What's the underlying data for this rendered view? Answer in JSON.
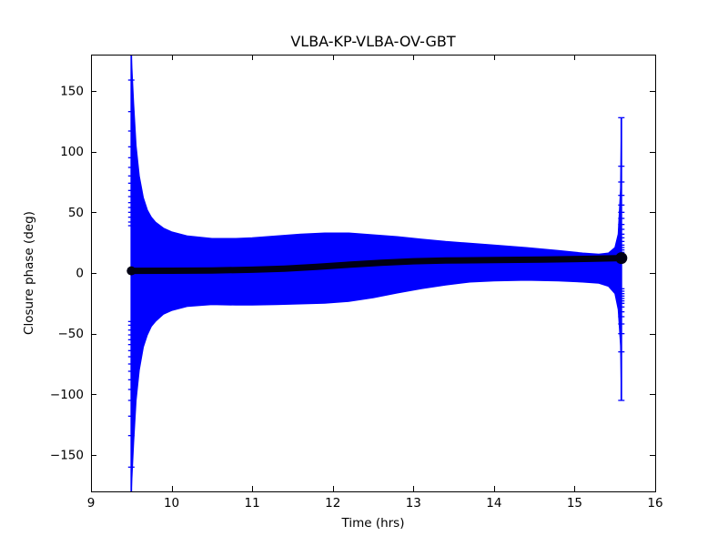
{
  "chart_data": {
    "type": "line",
    "subtype": "errorbar-closure-phase",
    "title": "VLBA-KP-VLBA-OV-GBT",
    "xlabel": "Time (hrs)",
    "ylabel": "Closure phase (deg)",
    "xlim": [
      9,
      16
    ],
    "ylim": [
      -180,
      180
    ],
    "xticks": [
      9,
      10,
      11,
      12,
      13,
      14,
      15,
      16
    ],
    "xtick_labels": [
      "9",
      "10",
      "11",
      "12",
      "13",
      "14",
      "15",
      "16"
    ],
    "yticks": [
      150,
      100,
      50,
      0,
      -50,
      -100,
      -150
    ],
    "ytick_labels": [
      "150",
      "100",
      "50",
      "0",
      "−50",
      "−100",
      "−150"
    ],
    "grid": false,
    "legend": null,
    "colors": {
      "errorbar": "#0000ff",
      "mean_line": "#000014",
      "frame": "#000000",
      "background": "#ffffff"
    },
    "envelope": [
      [
        9.5,
        180,
        -180
      ],
      [
        9.53,
        140,
        -140
      ],
      [
        9.56,
        105,
        -105
      ],
      [
        9.6,
        80,
        -80
      ],
      [
        9.65,
        62,
        -61
      ],
      [
        9.7,
        52,
        -51
      ],
      [
        9.75,
        46,
        -44
      ],
      [
        9.8,
        42,
        -40
      ],
      [
        9.9,
        37,
        -34
      ],
      [
        10.0,
        34,
        -31
      ],
      [
        10.2,
        30.5,
        -27.5
      ],
      [
        10.5,
        28.5,
        -26
      ],
      [
        10.8,
        28.5,
        -26.5
      ],
      [
        11.0,
        29,
        -26.5
      ],
      [
        11.3,
        30.5,
        -26
      ],
      [
        11.6,
        32,
        -25.5
      ],
      [
        11.9,
        33,
        -25
      ],
      [
        12.2,
        33,
        -23.5
      ],
      [
        12.5,
        31.5,
        -20.5
      ],
      [
        12.8,
        30,
        -16.5
      ],
      [
        13.1,
        28,
        -13
      ],
      [
        13.4,
        26,
        -10
      ],
      [
        13.7,
        24.5,
        -7.5
      ],
      [
        14.0,
        23,
        -6.5
      ],
      [
        14.4,
        21,
        -6
      ],
      [
        14.8,
        18.5,
        -6.5
      ],
      [
        15.1,
        16.5,
        -7.5
      ],
      [
        15.3,
        15.5,
        -8.5
      ],
      [
        15.42,
        16.5,
        -11
      ],
      [
        15.5,
        21,
        -17
      ],
      [
        15.54,
        32,
        -30
      ],
      [
        15.57,
        70,
        -60
      ],
      [
        15.58,
        128,
        -105
      ]
    ],
    "mean_line": [
      [
        9.5,
        1.8
      ],
      [
        10.0,
        1.9
      ],
      [
        10.5,
        2.1
      ],
      [
        11.0,
        2.7
      ],
      [
        11.4,
        3.6
      ],
      [
        11.8,
        5.0
      ],
      [
        12.2,
        6.8
      ],
      [
        12.6,
        8.5
      ],
      [
        13.0,
        9.7
      ],
      [
        13.4,
        10.3
      ],
      [
        14.0,
        10.7
      ],
      [
        14.6,
        11.0
      ],
      [
        15.2,
        11.7
      ],
      [
        15.58,
        12.3
      ]
    ],
    "mean_line_width": 7,
    "end_markers": [
      {
        "t": 9.5,
        "v": 1.8,
        "r": 5
      },
      {
        "t": 15.58,
        "v": 12.3,
        "r": 6.5
      }
    ],
    "spikes": [
      {
        "t": 9.5,
        "top": 180,
        "bottom": -180,
        "caps": [
          159,
          133,
          117,
          104,
          95,
          87,
          80,
          74,
          68,
          63,
          58,
          54,
          50,
          46,
          42,
          39,
          -160,
          -134,
          -118,
          -105,
          -96,
          -88,
          -81,
          -75,
          -69,
          -64,
          -59,
          -55,
          -51,
          -47,
          -43,
          -40
        ]
      },
      {
        "t": 15.58,
        "top": 128,
        "bottom": -105,
        "caps": [
          128,
          88,
          75,
          64,
          56,
          50,
          45,
          40,
          36,
          32,
          29,
          26,
          23,
          21,
          19,
          17,
          -105,
          -65,
          -50,
          -42,
          -36,
          -32,
          -28,
          -25,
          -23,
          -21,
          -19,
          -17,
          -15,
          -13
        ]
      }
    ]
  }
}
